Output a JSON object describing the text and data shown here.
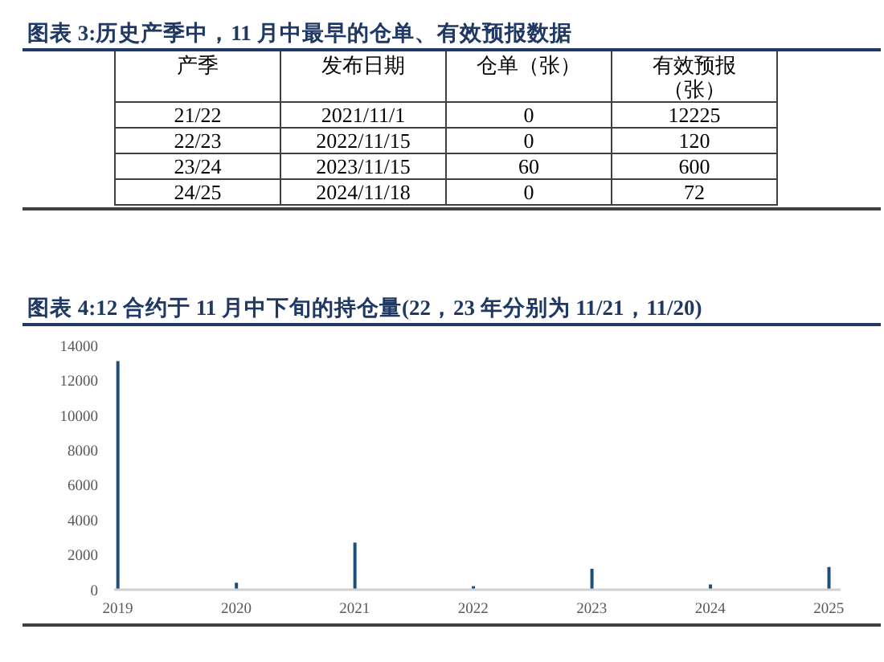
{
  "chart_data": [
    {
      "type": "other",
      "title": "图表 3:历史产季中，11 月中最早的仓单、有效预报数据",
      "categories": [
        "产季",
        "发布日期",
        "仓单（张）",
        "有效预报（张）"
      ],
      "annotations": [
        "21/22",
        "2021/11/1",
        "0",
        "12225",
        "22/23",
        "2022/11/15",
        "0",
        "120",
        "23/24",
        "2023/11/15",
        "60",
        "600",
        "24/25",
        "2024/11/18",
        "0",
        "72"
      ]
    },
    {
      "type": "bar",
      "title": "图表 4:12 合约于 11 月中下旬的持仓量(22，23 年分别为 11/21，11/20)",
      "categories": [
        "2019",
        "2020",
        "2021",
        "2022",
        "2023",
        "2024",
        "2025"
      ],
      "values": [
        13100,
        400,
        2700,
        200,
        1200,
        300,
        1300
      ],
      "color": "#1f4e79",
      "ylim": [
        0,
        14000
      ],
      "yticks": [
        0,
        2000,
        4000,
        6000,
        8000,
        10000,
        12000,
        14000
      ]
    }
  ]
}
